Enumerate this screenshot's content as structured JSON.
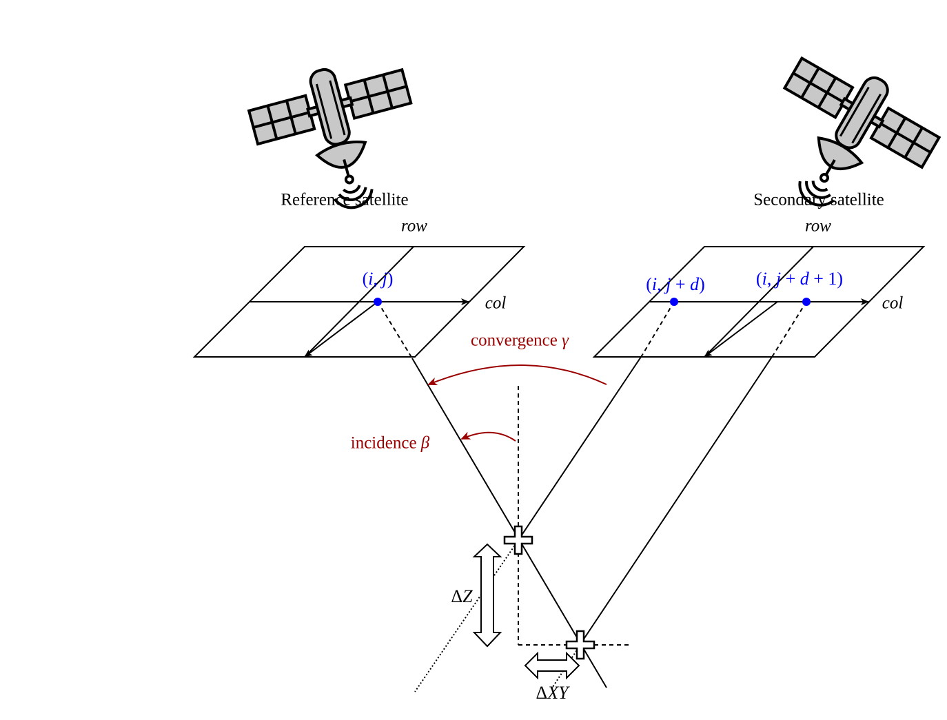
{
  "satellites": {
    "reference": {
      "label": "Reference satellite",
      "icon": "satellite-icon"
    },
    "secondary": {
      "label": "Secondary satellite",
      "icon": "satellite-icon"
    }
  },
  "grids": {
    "reference": {
      "row_label": "row",
      "col_label": "col"
    },
    "secondary": {
      "row_label": "row",
      "col_label": "col"
    }
  },
  "pixels": {
    "ref": {
      "open": "(",
      "i": "i",
      "sep": ", ",
      "j": "j",
      "close": ")"
    },
    "sec1": {
      "open": "(",
      "i": "i",
      "sep": ", ",
      "j": "j",
      "plus": " + ",
      "d": "d",
      "close": ")"
    },
    "sec2": {
      "open": "(",
      "i": "i",
      "sep": ", ",
      "j": "j",
      "plus": " + ",
      "d": "d",
      "plus2": " + 1",
      "close": ")"
    }
  },
  "angles": {
    "convergence": {
      "word": "convergence ",
      "symbol": "γ"
    },
    "incidence": {
      "word": "incidence ",
      "symbol": "β"
    }
  },
  "errors": {
    "dz": {
      "delta": "Δ",
      "var": "Z"
    },
    "dxy": {
      "delta": "Δ",
      "var": "XY"
    }
  },
  "colors": {
    "pixel": "#0000ff",
    "angle": "#9b0000",
    "panel": "#c8c8c8"
  }
}
